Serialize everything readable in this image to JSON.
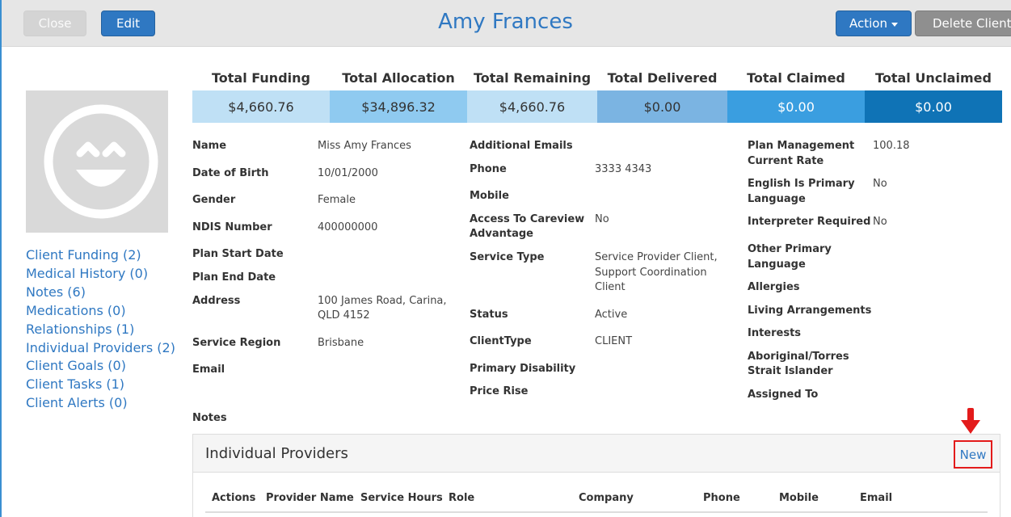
{
  "header": {
    "title": "Amy Frances",
    "close_label": "Close",
    "edit_label": "Edit",
    "action_label": "Action",
    "delete_label": "Delete Client"
  },
  "sidebar": {
    "links": [
      "Client Funding (2)",
      "Medical History (0)",
      "Notes (6)",
      "Medications (0)",
      "Relationships (1)",
      "Individual Providers (2)",
      "Client Goals (0)",
      "Client Tasks (1)",
      "Client Alerts (0)"
    ]
  },
  "totals": {
    "headers": [
      "Total Funding",
      "Total Allocation",
      "Total Remaining",
      "Total Delivered",
      "Total Claimed",
      "Total Unclaimed"
    ],
    "values": [
      "$4,660.76",
      "$34,896.32",
      "$4,660.76",
      "$0.00",
      "$0.00",
      "$0.00"
    ],
    "colors": [
      "#bfe0f5",
      "#8fcaf0",
      "#bfe0f5",
      "#7bb4e2",
      "#3a9ee0",
      "#0f73b6"
    ]
  },
  "details": {
    "col1": {
      "name_label": "Name",
      "name_value": "Miss Amy Frances",
      "dob_label": "Date of Birth",
      "dob_value": "10/01/2000",
      "gender_label": "Gender",
      "gender_value": "Female",
      "ndis_label": "NDIS Number",
      "ndis_value": "400000000",
      "plan_start_label": "Plan Start Date",
      "plan_end_label": "Plan End Date",
      "address_label": "Address",
      "address_line1": "100 James Road, Carina,",
      "address_line2": "QLD 4152",
      "region_label": "Service Region",
      "region_value": "Brisbane",
      "email_label": "Email",
      "notes_label": "Notes"
    },
    "col2": {
      "add_emails_label": "Additional Emails",
      "phone_label": "Phone",
      "phone_value": "3333 4343",
      "mobile_label": "Mobile",
      "careview_label1": "Access To Careview",
      "careview_label2": "Advantage",
      "careview_value": "No",
      "service_type_label": "Service Type",
      "service_type_line1": "Service Provider Client,",
      "service_type_line2": "Support Coordination",
      "service_type_line3": "Client",
      "status_label": "Status",
      "status_value": "Active",
      "client_type_label": "ClientType",
      "client_type_value": "CLIENT",
      "disability_label": "Primary Disability",
      "price_rise_label": "Price Rise"
    },
    "col3": {
      "pm_rate_label1": "Plan Management",
      "pm_rate_label2": "Current Rate",
      "pm_rate_value": "100.18",
      "english_label1": "English Is Primary",
      "english_label2": "Language",
      "english_value": "No",
      "interpreter_label": "Interpreter Required",
      "interpreter_value": "No",
      "other_lang_label1": "Other Primary",
      "other_lang_label2": "Language",
      "allergies_label": "Allergies",
      "living_label": "Living Arrangements",
      "interests_label": "Interests",
      "aboriginal_label1": "Aboriginal/Torres",
      "aboriginal_label2": "Strait Islander",
      "assigned_label": "Assigned To"
    }
  },
  "providers": {
    "title": "Individual Providers",
    "new_label": "New",
    "columns": [
      "Actions",
      "Provider Name",
      "Service Hours",
      "Role",
      "Company",
      "Phone",
      "Mobile",
      "Email"
    ]
  },
  "icons": {
    "avatar": "smiley-face-icon",
    "annotation": "red-down-arrow-icon"
  }
}
